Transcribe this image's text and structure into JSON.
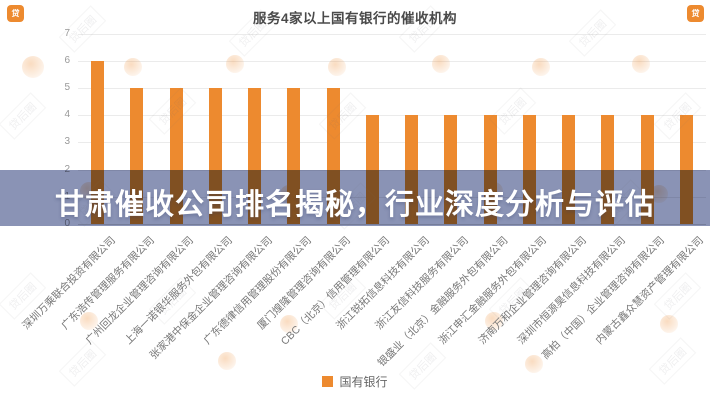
{
  "title": "服务4家以上国有银行的催收机构",
  "overlay": {
    "text": "甘肃催收公司排名揭秘，行业深度分析与评估"
  },
  "watermark": {
    "text": "贷后圈",
    "badge_glyph": "贷"
  },
  "legend": {
    "label": "国有银行"
  },
  "colors": {
    "bar": "#ED8A2F",
    "banner": "#8A93B5",
    "banner_text": "#FFFFFF",
    "title_text": "#4A4A4A",
    "axis_text": "#999999"
  },
  "chart_data": {
    "type": "bar",
    "title": "服务4家以上国有银行的催收机构",
    "series_name": "国有银行",
    "categories": [
      "深圳万乘联合投资有限公司",
      "广东浩传管理服务有限公司",
      "广州回龙企业管理咨询有限公司",
      "上海一诺银华服务外包有限公司",
      "张家港中保金企业管理咨询有限公司",
      "广东德律信用管理股份有限公司",
      "厦门煌隆管理咨询有限公司",
      "CBC（北京）信用管理有限公司",
      "浙江锐拓信息科技有限公司",
      "浙江友信科技服务有限公司",
      "银盛业（北京）金融服务外包有限公司",
      "浙江申汇金融服务外包有限公司",
      "济南万和企业管理咨询有限公司",
      "深圳市恒源昊信息科技有限公司",
      "高柏（中国）企业管理咨询有限公司",
      "内蒙古鑫众慧资产管理有限公司"
    ],
    "values": [
      6,
      5,
      5,
      5,
      5,
      5,
      5,
      4,
      4,
      4,
      4,
      4,
      4,
      4,
      4,
      4
    ],
    "xlabel": "",
    "ylabel": "",
    "ylim": [
      0,
      7
    ],
    "yticks": [
      0,
      1,
      2,
      3,
      4,
      5,
      6,
      7
    ],
    "grid": true,
    "legend_position": "bottom"
  }
}
